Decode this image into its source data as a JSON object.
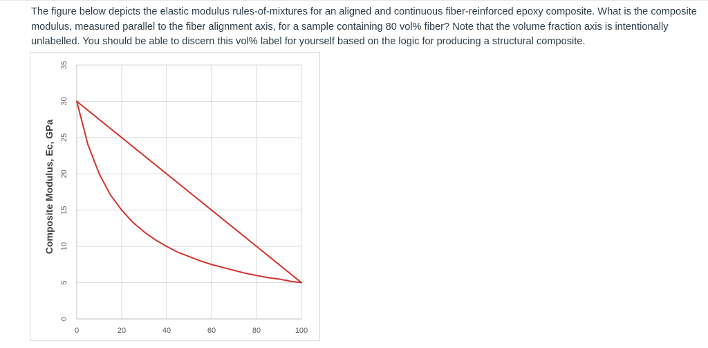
{
  "question": {
    "text": "The figure below depicts the elastic modulus rules-of-mixtures for an aligned and continuous fiber-reinforced epoxy composite. What is the composite modulus, measured parallel to the fiber alignment axis, for a sample containing 80 vol% fiber? Note that the volume fraction axis is intentionally unlabelled. You should be able to discern this vol% label for yourself based on the logic for producing a structural composite."
  },
  "chart_data": {
    "type": "line",
    "title": "",
    "xlabel": "",
    "ylabel": "Composite Modulus, Ec, GPa",
    "xlim": [
      0,
      100
    ],
    "ylim": [
      0,
      35
    ],
    "x_ticks": [
      0,
      20,
      40,
      60,
      80,
      100
    ],
    "y_ticks": [
      0,
      5,
      10,
      15,
      20,
      25,
      30,
      35
    ],
    "grid": true,
    "series_color": "#d0342c",
    "series": [
      {
        "x": [
          0,
          20,
          40,
          60,
          80,
          100
        ],
        "values": [
          30,
          25,
          20,
          15,
          10,
          5
        ]
      },
      {
        "x": [
          0,
          5,
          10,
          15,
          20,
          25,
          30,
          35,
          40,
          45,
          50,
          55,
          60,
          65,
          70,
          75,
          80,
          85,
          90,
          95,
          100
        ],
        "values": [
          30,
          24,
          20,
          17.1,
          15,
          13.3,
          12,
          10.9,
          10,
          9.2,
          8.6,
          8,
          7.5,
          7.1,
          6.7,
          6.3,
          6,
          5.7,
          5.5,
          5.2,
          5
        ]
      }
    ]
  }
}
